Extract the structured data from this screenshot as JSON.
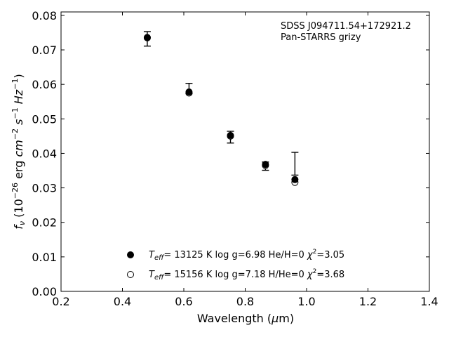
{
  "chart_data": {
    "type": "scatter",
    "xlabel_main": "Wavelength (",
    "xlabel_mu": "μ",
    "xlabel_tail": "m)",
    "ylabel_f": "f",
    "ylabel_nu": "ν",
    "ylabel_a": " (10",
    "ylabel_exp26": "−26",
    "ylabel_b": " erg ",
    "ylabel_cm": "cm",
    "ylabel_exp2": "−2",
    "ylabel_s": " s",
    "ylabel_exp1a": "−1",
    "ylabel_hz": " Hz",
    "ylabel_exp1b": "−1",
    "ylabel_close": ")",
    "xlim": [
      0.2,
      1.4
    ],
    "ylim": [
      0.0,
      0.081
    ],
    "xticks": [
      0.2,
      0.4,
      0.6,
      0.8,
      1.0,
      1.2,
      1.4
    ],
    "xtick_labels": [
      "0.2",
      "0.4",
      "0.6",
      "0.8",
      "1.0",
      "1.2",
      "1.4"
    ],
    "yticks": [
      0.0,
      0.01,
      0.02,
      0.03,
      0.04,
      0.05,
      0.06,
      0.07,
      0.08
    ],
    "ytick_labels": [
      "0.00",
      "0.01",
      "0.02",
      "0.03",
      "0.04",
      "0.05",
      "0.06",
      "0.07",
      "0.08"
    ],
    "grid": false,
    "annotation": [
      "SDSS J094711.54+172921.2",
      "Pan-STARRS grizy"
    ],
    "observed": {
      "x": [
        0.481,
        0.617,
        0.752,
        0.866,
        0.962
      ],
      "y": [
        0.0732,
        0.0588,
        0.0447,
        0.0363,
        0.037
      ],
      "err": [
        0.0021,
        0.0015,
        0.0017,
        0.0012,
        0.0033
      ]
    },
    "series": [
      {
        "marker": "filled",
        "x": [
          0.481,
          0.617,
          0.752,
          0.866,
          0.962
        ],
        "y": [
          0.0735,
          0.0578,
          0.0452,
          0.0368,
          0.0324
        ],
        "legend": {
          "t": "T",
          "sub": "eff",
          "rest": "= 13125 K  log g=6.98  He/H=0  ",
          "chi": "χ",
          "sup": "2",
          "val": "=3.05"
        }
      },
      {
        "marker": "open",
        "x": [
          0.481,
          0.617,
          0.752,
          0.866,
          0.962
        ],
        "y": [
          0.0736,
          0.0575,
          0.045,
          0.0365,
          0.0316
        ],
        "legend": {
          "t": "T",
          "sub": "eff",
          "rest": "= 15156 K  log g=7.18  H/He=0  ",
          "chi": "χ",
          "sup": "2",
          "val": "=3.68"
        }
      }
    ],
    "legend_position": "lower-center"
  }
}
